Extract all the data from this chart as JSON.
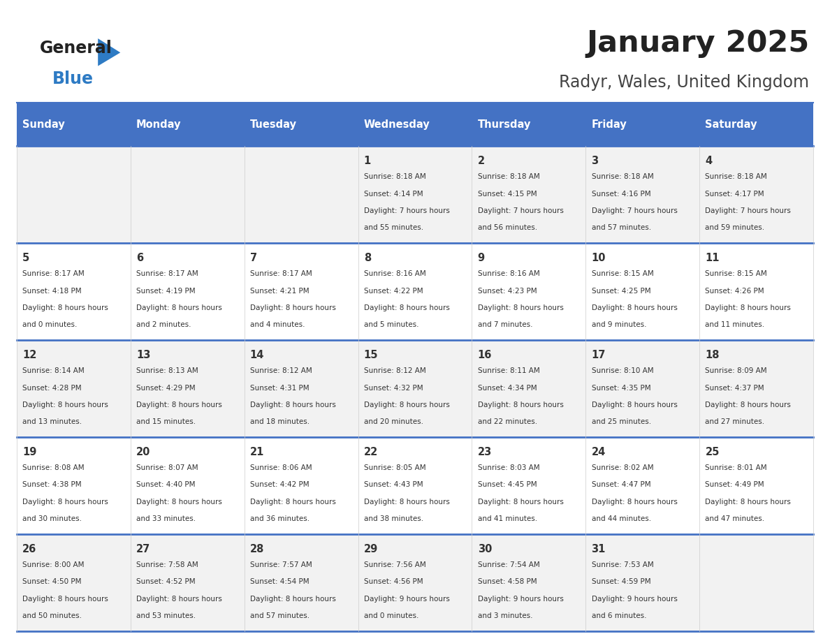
{
  "title": "January 2025",
  "subtitle": "Radyr, Wales, United Kingdom",
  "header_bg": "#4472C4",
  "header_text_color": "#FFFFFF",
  "weekdays": [
    "Sunday",
    "Monday",
    "Tuesday",
    "Wednesday",
    "Thursday",
    "Friday",
    "Saturday"
  ],
  "row_bg_even": "#F2F2F2",
  "row_bg_odd": "#FFFFFF",
  "day_number_color": "#333333",
  "info_text_color": "#333333",
  "border_color": "#4472C4",
  "logo_general_color": "#222222",
  "logo_blue_color": "#2E7BC4",
  "days": [
    {
      "day": null,
      "sunrise": null,
      "sunset": null,
      "daylight": null
    },
    {
      "day": null,
      "sunrise": null,
      "sunset": null,
      "daylight": null
    },
    {
      "day": null,
      "sunrise": null,
      "sunset": null,
      "daylight": null
    },
    {
      "day": 1,
      "sunrise": "8:18 AM",
      "sunset": "4:14 PM",
      "daylight": "7 hours and 55 minutes."
    },
    {
      "day": 2,
      "sunrise": "8:18 AM",
      "sunset": "4:15 PM",
      "daylight": "7 hours and 56 minutes."
    },
    {
      "day": 3,
      "sunrise": "8:18 AM",
      "sunset": "4:16 PM",
      "daylight": "7 hours and 57 minutes."
    },
    {
      "day": 4,
      "sunrise": "8:18 AM",
      "sunset": "4:17 PM",
      "daylight": "7 hours and 59 minutes."
    },
    {
      "day": 5,
      "sunrise": "8:17 AM",
      "sunset": "4:18 PM",
      "daylight": "8 hours and 0 minutes."
    },
    {
      "day": 6,
      "sunrise": "8:17 AM",
      "sunset": "4:19 PM",
      "daylight": "8 hours and 2 minutes."
    },
    {
      "day": 7,
      "sunrise": "8:17 AM",
      "sunset": "4:21 PM",
      "daylight": "8 hours and 4 minutes."
    },
    {
      "day": 8,
      "sunrise": "8:16 AM",
      "sunset": "4:22 PM",
      "daylight": "8 hours and 5 minutes."
    },
    {
      "day": 9,
      "sunrise": "8:16 AM",
      "sunset": "4:23 PM",
      "daylight": "8 hours and 7 minutes."
    },
    {
      "day": 10,
      "sunrise": "8:15 AM",
      "sunset": "4:25 PM",
      "daylight": "8 hours and 9 minutes."
    },
    {
      "day": 11,
      "sunrise": "8:15 AM",
      "sunset": "4:26 PM",
      "daylight": "8 hours and 11 minutes."
    },
    {
      "day": 12,
      "sunrise": "8:14 AM",
      "sunset": "4:28 PM",
      "daylight": "8 hours and 13 minutes."
    },
    {
      "day": 13,
      "sunrise": "8:13 AM",
      "sunset": "4:29 PM",
      "daylight": "8 hours and 15 minutes."
    },
    {
      "day": 14,
      "sunrise": "8:12 AM",
      "sunset": "4:31 PM",
      "daylight": "8 hours and 18 minutes."
    },
    {
      "day": 15,
      "sunrise": "8:12 AM",
      "sunset": "4:32 PM",
      "daylight": "8 hours and 20 minutes."
    },
    {
      "day": 16,
      "sunrise": "8:11 AM",
      "sunset": "4:34 PM",
      "daylight": "8 hours and 22 minutes."
    },
    {
      "day": 17,
      "sunrise": "8:10 AM",
      "sunset": "4:35 PM",
      "daylight": "8 hours and 25 minutes."
    },
    {
      "day": 18,
      "sunrise": "8:09 AM",
      "sunset": "4:37 PM",
      "daylight": "8 hours and 27 minutes."
    },
    {
      "day": 19,
      "sunrise": "8:08 AM",
      "sunset": "4:38 PM",
      "daylight": "8 hours and 30 minutes."
    },
    {
      "day": 20,
      "sunrise": "8:07 AM",
      "sunset": "4:40 PM",
      "daylight": "8 hours and 33 minutes."
    },
    {
      "day": 21,
      "sunrise": "8:06 AM",
      "sunset": "4:42 PM",
      "daylight": "8 hours and 36 minutes."
    },
    {
      "day": 22,
      "sunrise": "8:05 AM",
      "sunset": "4:43 PM",
      "daylight": "8 hours and 38 minutes."
    },
    {
      "day": 23,
      "sunrise": "8:03 AM",
      "sunset": "4:45 PM",
      "daylight": "8 hours and 41 minutes."
    },
    {
      "day": 24,
      "sunrise": "8:02 AM",
      "sunset": "4:47 PM",
      "daylight": "8 hours and 44 minutes."
    },
    {
      "day": 25,
      "sunrise": "8:01 AM",
      "sunset": "4:49 PM",
      "daylight": "8 hours and 47 minutes."
    },
    {
      "day": 26,
      "sunrise": "8:00 AM",
      "sunset": "4:50 PM",
      "daylight": "8 hours and 50 minutes."
    },
    {
      "day": 27,
      "sunrise": "7:58 AM",
      "sunset": "4:52 PM",
      "daylight": "8 hours and 53 minutes."
    },
    {
      "day": 28,
      "sunrise": "7:57 AM",
      "sunset": "4:54 PM",
      "daylight": "8 hours and 57 minutes."
    },
    {
      "day": 29,
      "sunrise": "7:56 AM",
      "sunset": "4:56 PM",
      "daylight": "9 hours and 0 minutes."
    },
    {
      "day": 30,
      "sunrise": "7:54 AM",
      "sunset": "4:58 PM",
      "daylight": "9 hours and 3 minutes."
    },
    {
      "day": 31,
      "sunrise": "7:53 AM",
      "sunset": "4:59 PM",
      "daylight": "9 hours and 6 minutes."
    },
    {
      "day": null,
      "sunrise": null,
      "sunset": null,
      "daylight": null
    }
  ]
}
